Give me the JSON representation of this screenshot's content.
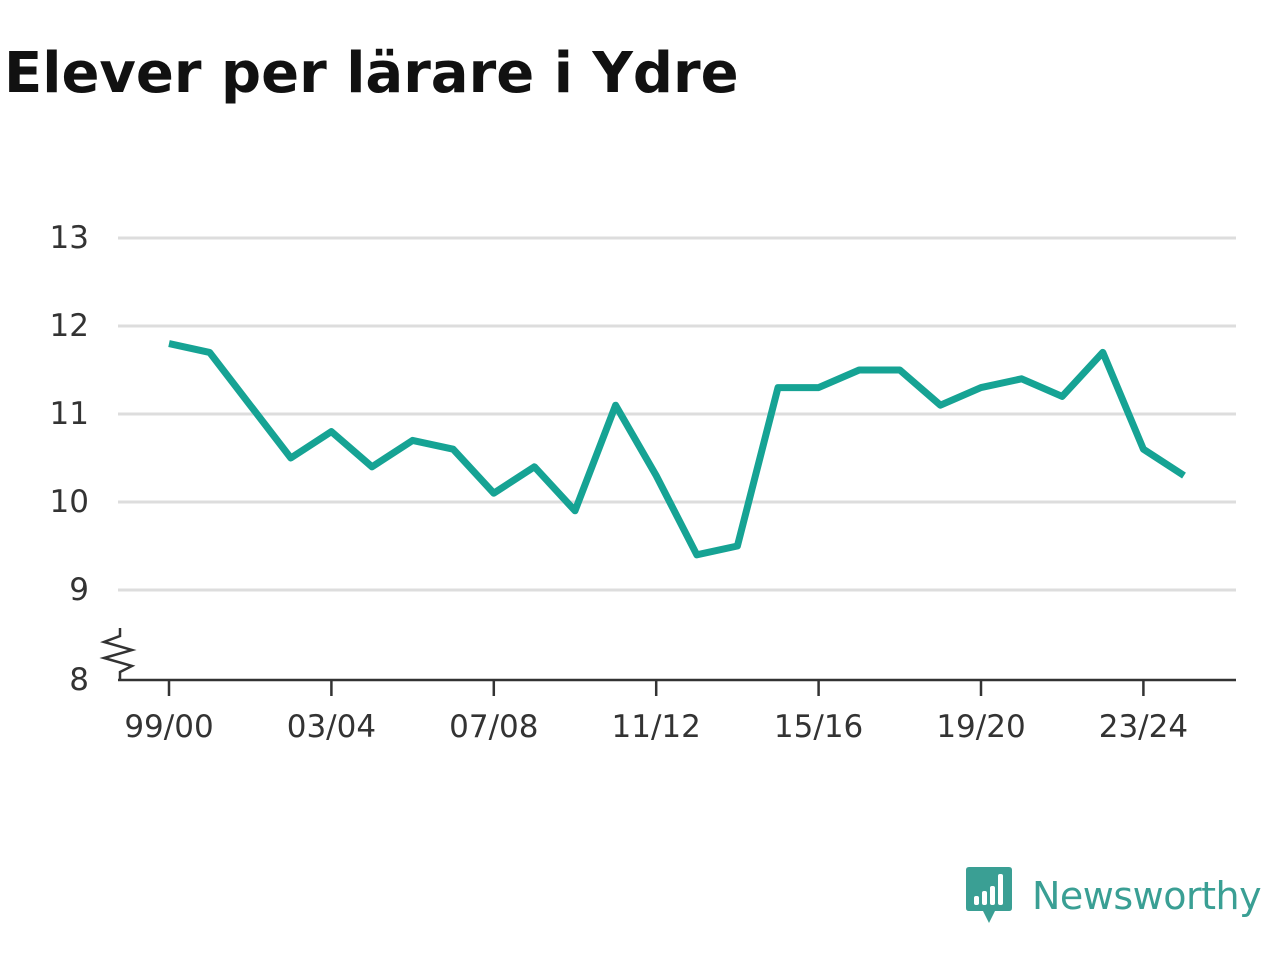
{
  "brand": {
    "name": "Newsworthy",
    "logo_icon": "newsworthy-chat-bars-icon",
    "color": "#3a9f94"
  },
  "chart_data": {
    "type": "line",
    "title": "Elever per lärare i Ydre",
    "xlabel": "",
    "ylabel": "",
    "ylim": [
      8,
      13
    ],
    "y_axis_break": true,
    "grid": true,
    "legend": "none",
    "yticks": [
      "8",
      "9",
      "10",
      "11",
      "12",
      "13"
    ],
    "xticks": [
      "99/00",
      "03/04",
      "07/08",
      "11/12",
      "15/16",
      "19/20",
      "23/24"
    ],
    "x": [
      "99/00",
      "00/01",
      "01/02",
      "02/03",
      "03/04",
      "04/05",
      "05/06",
      "06/07",
      "07/08",
      "08/09",
      "09/10",
      "10/11",
      "11/12",
      "12/13",
      "13/14",
      "14/15",
      "15/16",
      "16/17",
      "17/18",
      "18/19",
      "19/20",
      "20/21",
      "21/22",
      "22/23",
      "23/24",
      "24/25"
    ],
    "series": [
      {
        "color": "#16a394",
        "values": [
          11.8,
          11.7,
          11.1,
          10.5,
          10.8,
          10.4,
          10.7,
          10.6,
          10.1,
          10.4,
          9.9,
          11.1,
          10.3,
          9.4,
          9.5,
          11.3,
          11.3,
          11.5,
          11.5,
          11.1,
          11.3,
          11.4,
          11.2,
          11.7,
          10.6,
          10.3
        ]
      }
    ]
  }
}
